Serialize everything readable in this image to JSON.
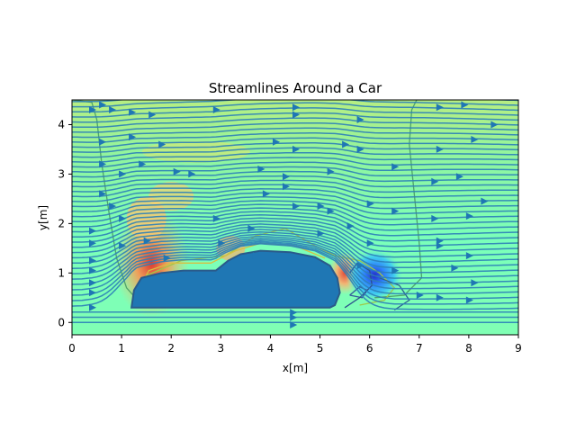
{
  "chart_data": {
    "type": "streamplot",
    "title": "Streamlines Around a Car",
    "xlabel": "x[m]",
    "ylabel": "y[m]",
    "xlim": [
      0,
      9
    ],
    "ylim": [
      -0.25,
      4.5
    ],
    "xticks": [
      0,
      1,
      2,
      3,
      4,
      5,
      6,
      7,
      8,
      9
    ],
    "yticks": [
      0,
      1,
      2,
      3,
      4
    ],
    "grid": false,
    "legend": "none",
    "car_outline": [
      [
        1.2,
        0.3
      ],
      [
        1.25,
        0.65
      ],
      [
        1.4,
        0.9
      ],
      [
        1.8,
        1.0
      ],
      [
        2.25,
        1.05
      ],
      [
        2.9,
        1.05
      ],
      [
        3.15,
        1.25
      ],
      [
        3.4,
        1.38
      ],
      [
        3.8,
        1.45
      ],
      [
        4.4,
        1.42
      ],
      [
        4.9,
        1.32
      ],
      [
        5.2,
        1.15
      ],
      [
        5.35,
        0.9
      ],
      [
        5.4,
        0.6
      ],
      [
        5.3,
        0.35
      ],
      [
        5.2,
        0.3
      ],
      [
        1.2,
        0.3
      ]
    ],
    "colors": {
      "background_field": "#7fffb2",
      "upper_field": "#a8f28c",
      "car": "#1f77b4",
      "streamline": "#2c7fb8",
      "arrow": "#1f77b4",
      "front_pressure": "#f07050",
      "wake_low": "#1e5bff"
    }
  }
}
